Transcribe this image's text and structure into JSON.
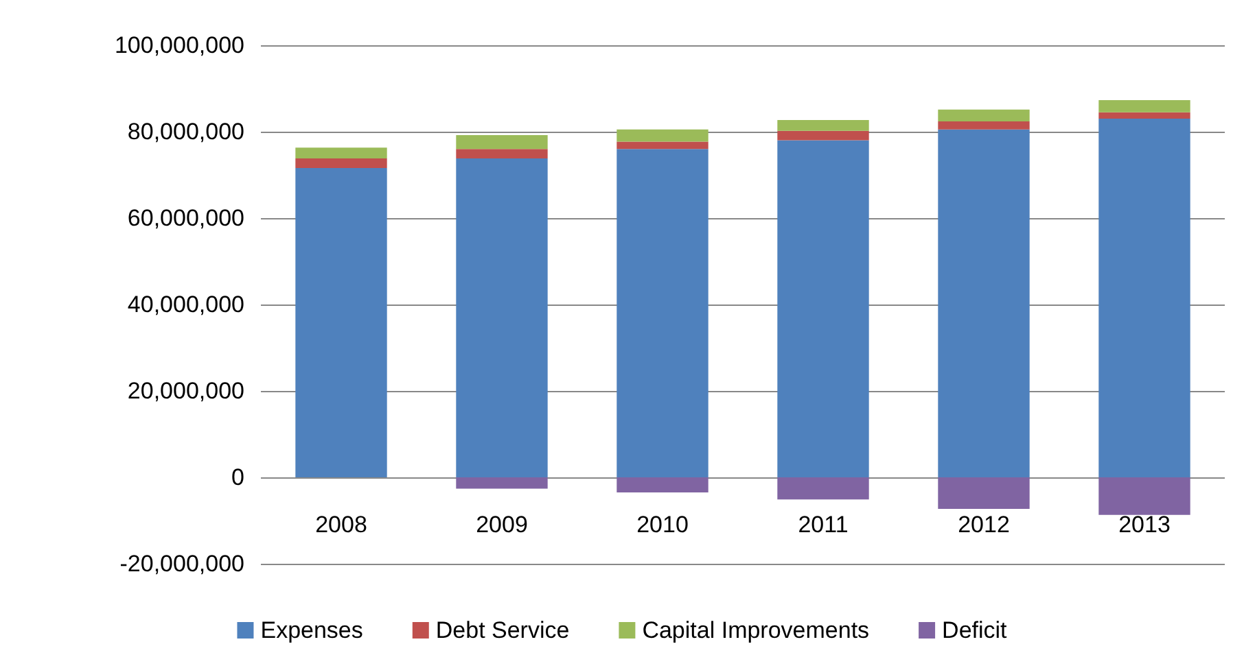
{
  "chart_data": {
    "type": "bar",
    "stacked": true,
    "categories": [
      "2008",
      "2009",
      "2010",
      "2011",
      "2012",
      "2013"
    ],
    "series": [
      {
        "name": "Expenses",
        "color": "#4f81bd",
        "values": [
          71600000,
          73800000,
          76000000,
          78000000,
          80500000,
          83000000
        ]
      },
      {
        "name": "Debt Service",
        "color": "#c0504d",
        "values": [
          2200000,
          2200000,
          1700000,
          2200000,
          1900000,
          1500000
        ]
      },
      {
        "name": "Capital Improvements",
        "color": "#9bbb59",
        "values": [
          2500000,
          3200000,
          2800000,
          2500000,
          2700000,
          2800000
        ]
      },
      {
        "name": "Deficit",
        "color": "#8064a2",
        "values": [
          null,
          -2600000,
          -3500000,
          -5100000,
          -7300000,
          -8700000
        ]
      }
    ],
    "ylim": [
      -20000000,
      100000000
    ],
    "yticks": [
      {
        "value": -20000000,
        "label": "-20,000,000"
      },
      0,
      {
        "value": 20000000,
        "label": "20,000,000"
      },
      {
        "value": 40000000,
        "label": "40,000,000"
      },
      {
        "value": 60000000,
        "label": "60,000,000"
      },
      {
        "value": 80000000,
        "label": "80,000,000"
      },
      {
        "value": 100000000,
        "label": "100,000,000"
      }
    ],
    "grid": "y",
    "legend": "bottom"
  }
}
